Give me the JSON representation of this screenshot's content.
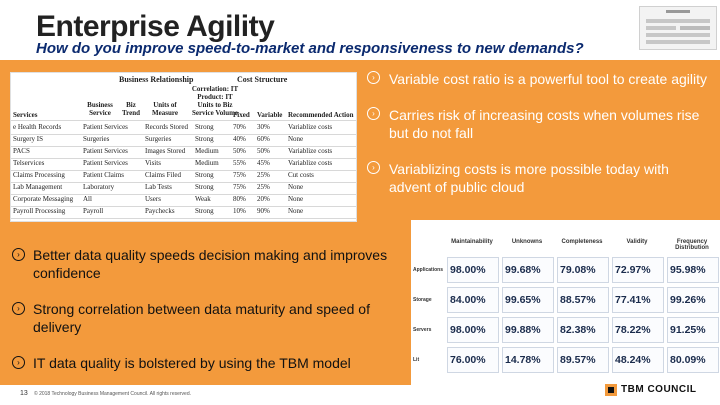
{
  "slide": {
    "title": "Enterprise Agility",
    "subtitle": "How do you improve speed-to-market and responsiveness to new demands?",
    "page_number": "13",
    "copyright": "© 2018 Technology Business Management Council. All rights reserved.",
    "brand": "TBM COUNCIL"
  },
  "bullets_right": [
    "Variable cost ratio is a powerful tool to create agility",
    "Carries risk of increasing costs when volumes rise but do not fall",
    "Variablizing costs is more possible today with advent of public cloud"
  ],
  "bullets_left": [
    "Better data quality speeds decision making and improves confidence",
    "Strong correlation between data maturity and speed of delivery",
    "IT data quality is bolstered by using the TBM model"
  ],
  "table": {
    "group_headers": [
      "Business Relationship",
      "Cost Structure"
    ],
    "correlation_header": "Correlation: IT Product: IT Units to Biz Service Volume",
    "columns": [
      "Services",
      "Business Service",
      "Biz Trend",
      "Units of Measure",
      "Correlation",
      "Fixed",
      "Variable",
      "Recommended Action"
    ],
    "rows": [
      [
        "e Health Records",
        "Patient Services",
        "",
        "Records Stored",
        "Strong",
        "70%",
        "30%",
        "Variablize costs"
      ],
      [
        "Surgery IS",
        "Surgeries",
        "",
        "Surgeries",
        "Strong",
        "40%",
        "60%",
        "None"
      ],
      [
        "PACS",
        "Patient Services",
        "",
        "Images Stored",
        "Medium",
        "50%",
        "50%",
        "Variablize costs"
      ],
      [
        "Telservices",
        "Patient Services",
        "",
        "Visits",
        "Medium",
        "55%",
        "45%",
        "Variablize costs"
      ],
      [
        "Claims Processing",
        "Patient Claims",
        "",
        "Claims Filed",
        "Strong",
        "75%",
        "25%",
        "Cut costs"
      ],
      [
        "Lab Management",
        "Laboratory",
        "",
        "Lab Tests",
        "Strong",
        "75%",
        "25%",
        "None"
      ],
      [
        "Corporate Messaging",
        "All",
        "",
        "Users",
        "Weak",
        "80%",
        "20%",
        "None"
      ],
      [
        "Payroll Processing",
        "Payroll",
        "",
        "Paychecks",
        "Strong",
        "10%",
        "90%",
        "None"
      ]
    ]
  },
  "dashboard": {
    "columns": [
      "Maintainability",
      "Unknowns",
      "Completeness",
      "Validity",
      "Frequency Distribution"
    ],
    "rows": [
      "Applications",
      "Storage",
      "Servers",
      "Lit"
    ],
    "values": [
      [
        "98.00%",
        "99.68%",
        "79.08%",
        "72.97%",
        "95.98%"
      ],
      [
        "84.00%",
        "99.65%",
        "88.57%",
        "77.41%",
        "99.26%"
      ],
      [
        "98.00%",
        "99.88%",
        "82.38%",
        "78.22%",
        "91.25%"
      ],
      [
        "76.00%",
        "14.78%",
        "89.57%",
        "48.24%",
        "80.09%"
      ]
    ]
  }
}
